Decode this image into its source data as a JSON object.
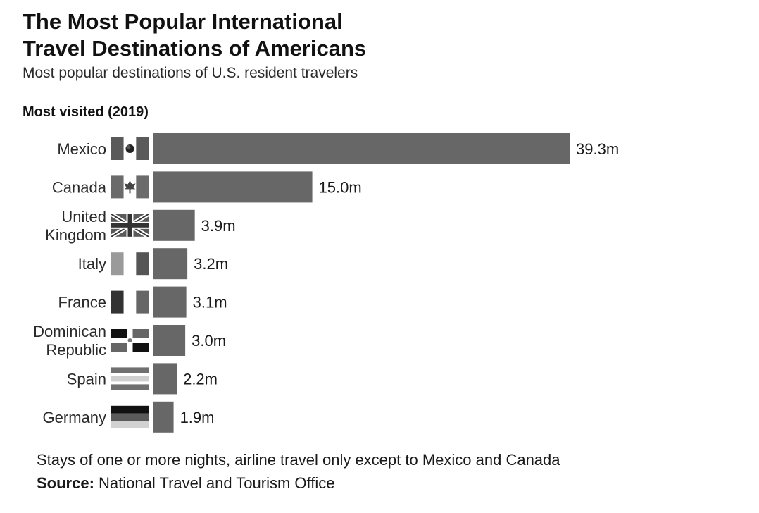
{
  "header": {
    "title_line1": "The Most Popular International",
    "title_line2": "Travel Destinations of Americans",
    "subtitle": "Most popular destinations of U.S. resident travelers",
    "section_label": "Most visited (2019)"
  },
  "chart_data": {
    "type": "bar",
    "orientation": "horizontal",
    "title": "The Most Popular International Travel Destinations of Americans",
    "subtitle": "Most visited (2019)",
    "unit": "million travelers",
    "categories": [
      "Mexico",
      "Canada",
      "United Kingdom",
      "Italy",
      "France",
      "Dominican Republic",
      "Spain",
      "Germany"
    ],
    "label_lines": [
      [
        "Mexico"
      ],
      [
        "Canada"
      ],
      [
        "United",
        "Kingdom"
      ],
      [
        "Italy"
      ],
      [
        "France"
      ],
      [
        "Dominican",
        "Republic"
      ],
      [
        "Spain"
      ],
      [
        "Germany"
      ]
    ],
    "values": [
      39.3,
      15.0,
      3.9,
      3.2,
      3.1,
      3.0,
      2.2,
      1.9
    ],
    "value_labels": [
      "39.3m",
      "15.0m",
      "3.9m",
      "3.2m",
      "3.1m",
      "3.0m",
      "2.2m",
      "1.9m"
    ],
    "flags": [
      "mexico-flag-icon",
      "canada-flag-icon",
      "uk-flag-icon",
      "italy-flag-icon",
      "france-flag-icon",
      "dominican-republic-flag-icon",
      "spain-flag-icon",
      "germany-flag-icon"
    ],
    "xlim": [
      0,
      39.3
    ],
    "bar_color": "#676767"
  },
  "footer": {
    "note": "Stays of one or more nights, airline travel only except to Mexico and Canada",
    "source_label": "Source:",
    "source_text": " National Travel and Tourism Office"
  }
}
